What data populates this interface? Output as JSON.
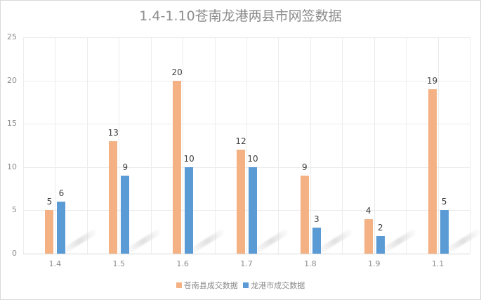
{
  "title": "1.4-1.10苍南龙港两县市网签数据",
  "colors": {
    "series1": "#f4b183",
    "series2": "#5b9bd5"
  },
  "y_ticks": [
    "0",
    "5",
    "10",
    "15",
    "20",
    "25"
  ],
  "legend": [
    "苍南县成交数据",
    "龙港市成交数据"
  ],
  "chart_data": {
    "type": "bar",
    "title": "1.4-1.10苍南龙港两县市网签数据",
    "categories": [
      "1.4",
      "1.5",
      "1.6",
      "1.7",
      "1.8",
      "1.9",
      "1.1"
    ],
    "series": [
      {
        "name": "苍南县成交数据",
        "color": "#f4b183",
        "values": [
          5,
          13,
          20,
          12,
          9,
          4,
          19
        ]
      },
      {
        "name": "龙港市成交数据",
        "color": "#5b9bd5",
        "values": [
          6,
          9,
          10,
          10,
          3,
          2,
          5
        ]
      }
    ],
    "xlabel": "",
    "ylabel": "",
    "ylim": [
      0,
      25
    ],
    "yticks": [
      0,
      5,
      10,
      15,
      20,
      25
    ],
    "grid": true,
    "data_labels": true,
    "legend_position": "bottom"
  }
}
